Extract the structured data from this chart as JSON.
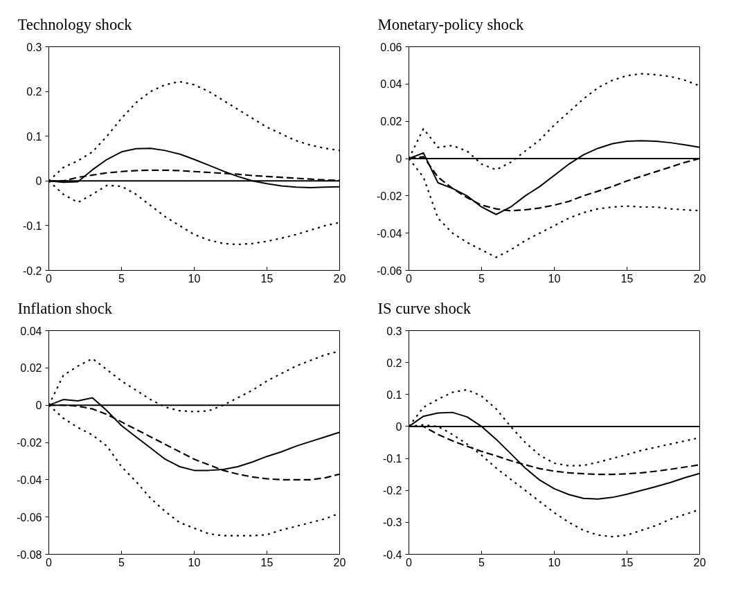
{
  "chart_data": [
    {
      "type": "line",
      "title": "Technology shock",
      "x": [
        0,
        1,
        2,
        3,
        4,
        5,
        6,
        7,
        8,
        9,
        10,
        11,
        12,
        13,
        14,
        15,
        16,
        17,
        18,
        19,
        20
      ],
      "xlim": [
        0,
        20
      ],
      "xticks": [
        0,
        5,
        10,
        15,
        20
      ],
      "ylim": [
        -0.2,
        0.3
      ],
      "yticks": [
        -0.2,
        -0.1,
        0,
        0.1,
        0.2,
        0.3
      ],
      "grid": false,
      "marker": "none",
      "ref_lines": [
        {
          "axis": "y",
          "value": 0,
          "color": "#000000",
          "line_style": "solid"
        }
      ],
      "series": [
        {
          "color": "#000000",
          "line_style": "solid",
          "values": [
            0,
            -0.003,
            -0.002,
            0.025,
            0.048,
            0.065,
            0.072,
            0.073,
            0.068,
            0.06,
            0.048,
            0.035,
            0.022,
            0.01,
            0.0,
            -0.006,
            -0.011,
            -0.014,
            -0.015,
            -0.014,
            -0.013
          ]
        },
        {
          "color": "#000000",
          "line_style": "dashed",
          "values": [
            0,
            0,
            0.008,
            0.013,
            0.018,
            0.021,
            0.023,
            0.024,
            0.024,
            0.023,
            0.021,
            0.019,
            0.017,
            0.015,
            0.012,
            0.01,
            0.008,
            0.006,
            0.004,
            0.002,
            0.001
          ]
        },
        {
          "color": "#000000",
          "line_style": "dotted",
          "values": [
            0,
            0.03,
            0.045,
            0.065,
            0.1,
            0.14,
            0.175,
            0.2,
            0.215,
            0.222,
            0.215,
            0.2,
            0.18,
            0.16,
            0.14,
            0.12,
            0.105,
            0.09,
            0.08,
            0.073,
            0.068
          ]
        },
        {
          "color": "#000000",
          "line_style": "dotted",
          "values": [
            0,
            -0.03,
            -0.048,
            -0.03,
            -0.01,
            -0.012,
            -0.03,
            -0.055,
            -0.08,
            -0.1,
            -0.12,
            -0.132,
            -0.14,
            -0.142,
            -0.14,
            -0.135,
            -0.128,
            -0.12,
            -0.11,
            -0.1,
            -0.093
          ]
        }
      ]
    },
    {
      "type": "line",
      "title": "Monetary-policy shock",
      "x": [
        0,
        1,
        2,
        3,
        4,
        5,
        6,
        7,
        8,
        9,
        10,
        11,
        12,
        13,
        14,
        15,
        16,
        17,
        18,
        19,
        20
      ],
      "xlim": [
        0,
        20
      ],
      "xticks": [
        0,
        5,
        10,
        15,
        20
      ],
      "ylim": [
        -0.06,
        0.06
      ],
      "yticks": [
        -0.06,
        -0.04,
        -0.02,
        0,
        0.02,
        0.04,
        0.06
      ],
      "grid": false,
      "marker": "none",
      "ref_lines": [
        {
          "axis": "y",
          "value": 0,
          "color": "#000000",
          "line_style": "solid"
        }
      ],
      "series": [
        {
          "color": "#000000",
          "line_style": "solid",
          "values": [
            0,
            0.003,
            -0.013,
            -0.016,
            -0.02,
            -0.026,
            -0.03,
            -0.026,
            -0.02,
            -0.015,
            -0.009,
            -0.003,
            0.002,
            0.0055,
            0.008,
            0.0093,
            0.0096,
            0.0093,
            0.0085,
            0.0073,
            0.006
          ]
        },
        {
          "color": "#000000",
          "line_style": "dashed",
          "values": [
            0,
            0.001,
            -0.01,
            -0.016,
            -0.021,
            -0.025,
            -0.027,
            -0.028,
            -0.0275,
            -0.0265,
            -0.025,
            -0.023,
            -0.02,
            -0.0175,
            -0.015,
            -0.012,
            -0.0095,
            -0.007,
            -0.0045,
            -0.002,
            0.0
          ]
        },
        {
          "color": "#000000",
          "line_style": "dotted",
          "values": [
            0,
            0.016,
            0.006,
            0.007,
            0.004,
            -0.003,
            -0.006,
            -0.002,
            0.004,
            0.01,
            0.018,
            0.025,
            0.032,
            0.038,
            0.042,
            0.0445,
            0.0455,
            0.045,
            0.044,
            0.042,
            0.039
          ]
        },
        {
          "color": "#000000",
          "line_style": "dotted",
          "values": [
            0,
            -0.01,
            -0.032,
            -0.04,
            -0.045,
            -0.049,
            -0.053,
            -0.049,
            -0.044,
            -0.04,
            -0.036,
            -0.032,
            -0.029,
            -0.027,
            -0.026,
            -0.0255,
            -0.026,
            -0.026,
            -0.027,
            -0.0275,
            -0.028
          ]
        }
      ]
    },
    {
      "type": "line",
      "title": "Inflation shock",
      "x": [
        0,
        1,
        2,
        3,
        4,
        5,
        6,
        7,
        8,
        9,
        10,
        11,
        12,
        13,
        14,
        15,
        16,
        17,
        18,
        19,
        20
      ],
      "xlim": [
        0,
        20
      ],
      "xticks": [
        0,
        5,
        10,
        15,
        20
      ],
      "ylim": [
        -0.08,
        0.04
      ],
      "yticks": [
        -0.08,
        -0.06,
        -0.04,
        -0.02,
        0,
        0.02,
        0.04
      ],
      "grid": false,
      "marker": "none",
      "ref_lines": [
        {
          "axis": "y",
          "value": 0,
          "color": "#000000",
          "line_style": "solid"
        }
      ],
      "series": [
        {
          "color": "#000000",
          "line_style": "solid",
          "values": [
            0,
            0.003,
            0.0023,
            0.004,
            -0.003,
            -0.011,
            -0.017,
            -0.023,
            -0.029,
            -0.033,
            -0.035,
            -0.035,
            -0.0345,
            -0.033,
            -0.0305,
            -0.0275,
            -0.025,
            -0.022,
            -0.0195,
            -0.017,
            -0.0145
          ]
        },
        {
          "color": "#000000",
          "line_style": "dashed",
          "values": [
            0,
            0,
            -0.0005,
            -0.002,
            -0.005,
            -0.009,
            -0.013,
            -0.017,
            -0.021,
            -0.025,
            -0.029,
            -0.032,
            -0.035,
            -0.037,
            -0.0385,
            -0.0395,
            -0.04,
            -0.04,
            -0.04,
            -0.039,
            -0.037
          ]
        },
        {
          "color": "#000000",
          "line_style": "dotted",
          "values": [
            0,
            0.016,
            0.021,
            0.025,
            0.019,
            0.013,
            0.008,
            0.003,
            -0.001,
            -0.003,
            -0.0035,
            -0.003,
            0.0,
            0.004,
            0.008,
            0.013,
            0.017,
            0.021,
            0.024,
            0.027,
            0.029
          ]
        },
        {
          "color": "#000000",
          "line_style": "dotted",
          "values": [
            0,
            -0.007,
            -0.012,
            -0.016,
            -0.022,
            -0.033,
            -0.041,
            -0.05,
            -0.057,
            -0.063,
            -0.066,
            -0.069,
            -0.07,
            -0.07,
            -0.07,
            -0.0695,
            -0.067,
            -0.065,
            -0.063,
            -0.061,
            -0.058
          ]
        }
      ]
    },
    {
      "type": "line",
      "title": "IS curve shock",
      "x": [
        0,
        1,
        2,
        3,
        4,
        5,
        6,
        7,
        8,
        9,
        10,
        11,
        12,
        13,
        14,
        15,
        16,
        17,
        18,
        19,
        20
      ],
      "xlim": [
        0,
        20
      ],
      "xticks": [
        0,
        5,
        10,
        15,
        20
      ],
      "ylim": [
        -0.4,
        0.3
      ],
      "yticks": [
        -0.4,
        -0.3,
        -0.2,
        -0.1,
        0,
        0.1,
        0.2,
        0.3
      ],
      "grid": false,
      "marker": "none",
      "ref_lines": [
        {
          "axis": "y",
          "value": 0,
          "color": "#000000",
          "line_style": "solid"
        }
      ],
      "series": [
        {
          "color": "#000000",
          "line_style": "solid",
          "values": [
            0,
            0.032,
            0.042,
            0.044,
            0.03,
            0.0,
            -0.04,
            -0.085,
            -0.13,
            -0.168,
            -0.195,
            -0.213,
            -0.225,
            -0.227,
            -0.222,
            -0.212,
            -0.2,
            -0.188,
            -0.175,
            -0.16,
            -0.147
          ]
        },
        {
          "color": "#000000",
          "line_style": "dashed",
          "values": [
            0,
            0,
            -0.025,
            -0.045,
            -0.062,
            -0.078,
            -0.092,
            -0.107,
            -0.12,
            -0.132,
            -0.14,
            -0.145,
            -0.148,
            -0.15,
            -0.15,
            -0.148,
            -0.145,
            -0.14,
            -0.134,
            -0.127,
            -0.12
          ]
        },
        {
          "color": "#000000",
          "line_style": "dotted",
          "values": [
            0,
            0.06,
            0.085,
            0.107,
            0.115,
            0.095,
            0.055,
            0.0,
            -0.05,
            -0.09,
            -0.115,
            -0.123,
            -0.122,
            -0.112,
            -0.1,
            -0.088,
            -0.075,
            -0.065,
            -0.055,
            -0.045,
            -0.035
          ]
        },
        {
          "color": "#000000",
          "line_style": "dotted",
          "values": [
            0,
            0.005,
            0.0,
            -0.025,
            -0.055,
            -0.09,
            -0.13,
            -0.165,
            -0.2,
            -0.235,
            -0.27,
            -0.3,
            -0.325,
            -0.34,
            -0.345,
            -0.34,
            -0.325,
            -0.31,
            -0.29,
            -0.275,
            -0.26
          ]
        }
      ]
    }
  ]
}
